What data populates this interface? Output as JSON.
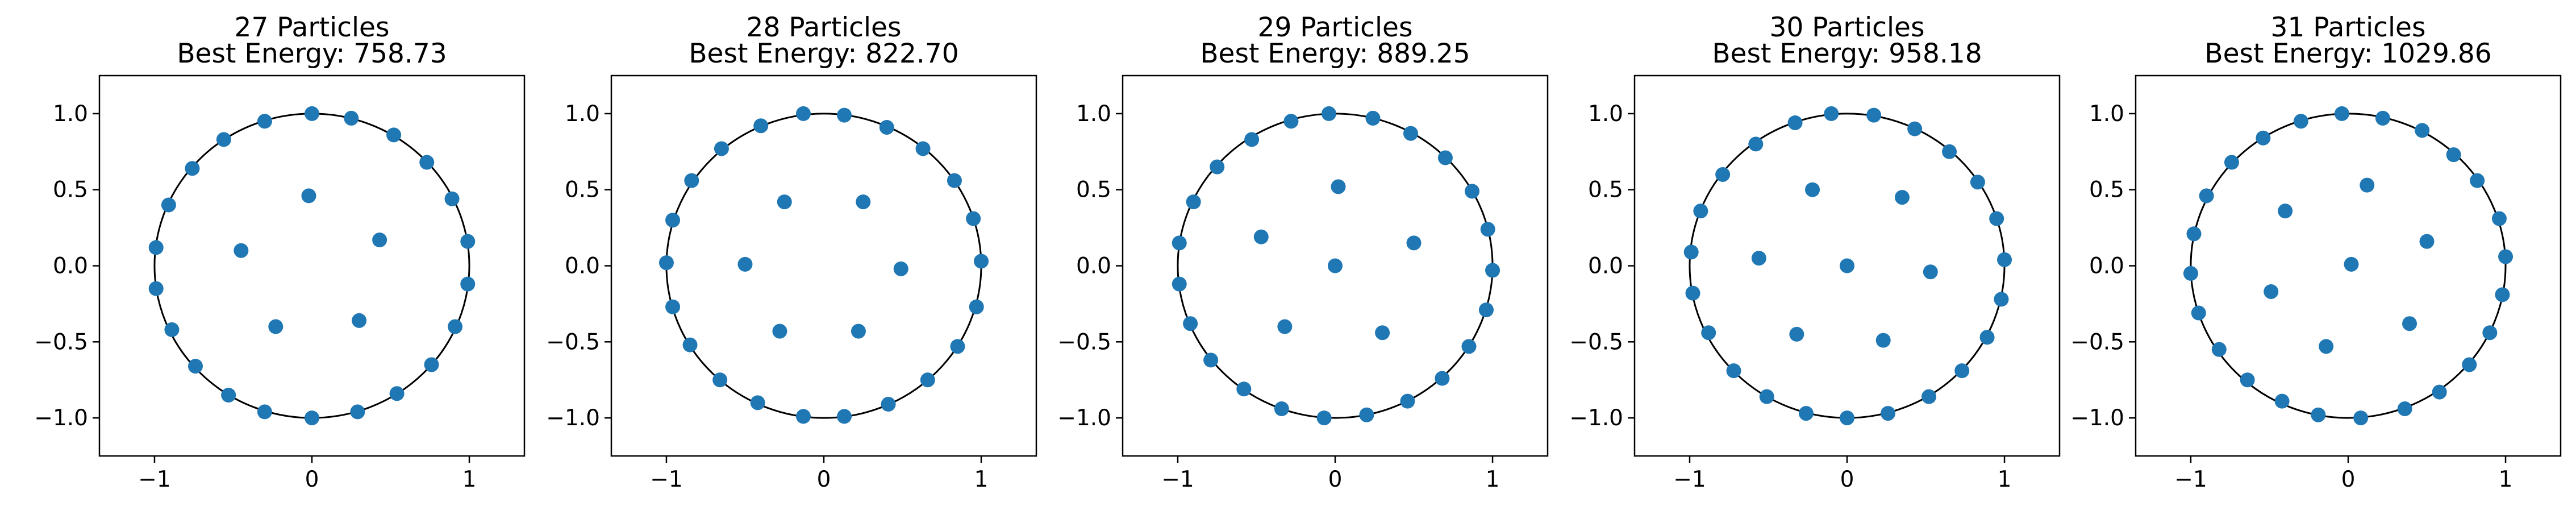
{
  "chart_data": [
    {
      "type": "scatter",
      "title": "27 Particles\nBest Energy: 758.73",
      "xlim": [
        -1.35,
        1.35
      ],
      "ylim": [
        -1.25,
        1.25
      ],
      "xticks": [
        -1,
        0,
        1
      ],
      "yticks": [
        -1.0,
        -0.5,
        0.0,
        0.5,
        1.0
      ],
      "circle": {
        "radius": 1.0
      },
      "color": "#1f77b4",
      "points": [
        [
          0.0,
          1.0
        ],
        [
          0.25,
          0.97
        ],
        [
          0.52,
          0.86
        ],
        [
          0.73,
          0.68
        ],
        [
          0.89,
          0.44
        ],
        [
          0.99,
          0.16
        ],
        [
          0.99,
          -0.12
        ],
        [
          0.91,
          -0.4
        ],
        [
          0.76,
          -0.65
        ],
        [
          0.54,
          -0.84
        ],
        [
          0.29,
          -0.96
        ],
        [
          0.0,
          -1.0
        ],
        [
          -0.3,
          -0.96
        ],
        [
          -0.53,
          -0.85
        ],
        [
          -0.74,
          -0.66
        ],
        [
          -0.89,
          -0.42
        ],
        [
          -0.99,
          -0.15
        ],
        [
          -0.99,
          0.12
        ],
        [
          -0.91,
          0.4
        ],
        [
          -0.76,
          0.64
        ],
        [
          -0.56,
          0.83
        ],
        [
          -0.3,
          0.95
        ],
        [
          -0.02,
          0.46
        ],
        [
          0.43,
          0.17
        ],
        [
          0.3,
          -0.36
        ],
        [
          -0.23,
          -0.4
        ],
        [
          -0.45,
          0.1
        ]
      ]
    },
    {
      "type": "scatter",
      "title": "28 Particles\nBest Energy: 822.70",
      "xlim": [
        -1.35,
        1.35
      ],
      "ylim": [
        -1.25,
        1.25
      ],
      "xticks": [
        -1,
        0,
        1
      ],
      "yticks": [
        -1.0,
        -0.5,
        0.0,
        0.5,
        1.0
      ],
      "circle": {
        "radius": 1.0
      },
      "color": "#1f77b4",
      "points": [
        [
          -0.13,
          1.0
        ],
        [
          0.13,
          0.99
        ],
        [
          0.4,
          0.91
        ],
        [
          0.63,
          0.77
        ],
        [
          0.83,
          0.56
        ],
        [
          0.95,
          0.31
        ],
        [
          1.0,
          0.03
        ],
        [
          0.97,
          -0.27
        ],
        [
          0.85,
          -0.53
        ],
        [
          0.66,
          -0.75
        ],
        [
          0.41,
          -0.91
        ],
        [
          0.13,
          -0.99
        ],
        [
          -0.13,
          -0.99
        ],
        [
          -0.42,
          -0.9
        ],
        [
          -0.66,
          -0.75
        ],
        [
          -0.85,
          -0.52
        ],
        [
          -0.96,
          -0.27
        ],
        [
          -1.0,
          0.02
        ],
        [
          -0.96,
          0.3
        ],
        [
          -0.84,
          0.56
        ],
        [
          -0.65,
          0.77
        ],
        [
          -0.4,
          0.92
        ],
        [
          -0.25,
          0.42
        ],
        [
          0.25,
          0.42
        ],
        [
          0.49,
          -0.02
        ],
        [
          0.22,
          -0.43
        ],
        [
          -0.28,
          -0.43
        ],
        [
          -0.5,
          0.01
        ]
      ]
    },
    {
      "type": "scatter",
      "title": "29 Particles\nBest Energy: 889.25",
      "xlim": [
        -1.35,
        1.35
      ],
      "ylim": [
        -1.25,
        1.25
      ],
      "xticks": [
        -1,
        0,
        1
      ],
      "yticks": [
        -1.0,
        -0.5,
        0.0,
        0.5,
        1.0
      ],
      "circle": {
        "radius": 1.0
      },
      "color": "#1f77b4",
      "points": [
        [
          -0.04,
          1.0
        ],
        [
          0.24,
          0.97
        ],
        [
          0.48,
          0.87
        ],
        [
          0.7,
          0.71
        ],
        [
          0.87,
          0.49
        ],
        [
          0.97,
          0.24
        ],
        [
          1.0,
          -0.03
        ],
        [
          0.96,
          -0.29
        ],
        [
          0.85,
          -0.53
        ],
        [
          0.68,
          -0.74
        ],
        [
          0.46,
          -0.89
        ],
        [
          0.2,
          -0.98
        ],
        [
          -0.07,
          -1.0
        ],
        [
          -0.34,
          -0.94
        ],
        [
          -0.58,
          -0.81
        ],
        [
          -0.79,
          -0.62
        ],
        [
          -0.92,
          -0.38
        ],
        [
          -0.99,
          -0.12
        ],
        [
          -0.99,
          0.15
        ],
        [
          -0.9,
          0.42
        ],
        [
          -0.75,
          0.65
        ],
        [
          -0.53,
          0.83
        ],
        [
          -0.28,
          0.95
        ],
        [
          0.02,
          0.52
        ],
        [
          0.5,
          0.15
        ],
        [
          0.3,
          -0.44
        ],
        [
          -0.32,
          -0.4
        ],
        [
          -0.47,
          0.19
        ],
        [
          0.0,
          0.0
        ]
      ]
    },
    {
      "type": "scatter",
      "title": "30 Particles\nBest Energy: 958.18",
      "xlim": [
        -1.35,
        1.35
      ],
      "ylim": [
        -1.25,
        1.25
      ],
      "xticks": [
        -1,
        0,
        1
      ],
      "yticks": [
        -1.0,
        -0.5,
        0.0,
        0.5,
        1.0
      ],
      "circle": {
        "radius": 1.0
      },
      "color": "#1f77b4",
      "points": [
        [
          -0.1,
          1.0
        ],
        [
          0.17,
          0.99
        ],
        [
          0.43,
          0.9
        ],
        [
          0.65,
          0.75
        ],
        [
          0.83,
          0.55
        ],
        [
          0.95,
          0.31
        ],
        [
          1.0,
          0.04
        ],
        [
          0.98,
          -0.22
        ],
        [
          0.89,
          -0.47
        ],
        [
          0.73,
          -0.69
        ],
        [
          0.52,
          -0.86
        ],
        [
          0.26,
          -0.97
        ],
        [
          0.0,
          -1.0
        ],
        [
          -0.26,
          -0.97
        ],
        [
          -0.51,
          -0.86
        ],
        [
          -0.72,
          -0.69
        ],
        [
          -0.88,
          -0.44
        ],
        [
          -0.98,
          -0.18
        ],
        [
          -0.99,
          0.09
        ],
        [
          -0.93,
          0.36
        ],
        [
          -0.79,
          0.6
        ],
        [
          -0.58,
          0.8
        ],
        [
          -0.33,
          0.94
        ],
        [
          -0.22,
          0.5
        ],
        [
          0.35,
          0.45
        ],
        [
          0.53,
          -0.04
        ],
        [
          0.23,
          -0.49
        ],
        [
          -0.32,
          -0.45
        ],
        [
          -0.56,
          0.05
        ],
        [
          0.0,
          0.0
        ]
      ]
    },
    {
      "type": "scatter",
      "title": "31 Particles\nBest Energy: 1029.86",
      "xlim": [
        -1.35,
        1.35
      ],
      "ylim": [
        -1.25,
        1.25
      ],
      "xticks": [
        -1,
        0,
        1
      ],
      "yticks": [
        -1.0,
        -0.5,
        0.0,
        0.5,
        1.0
      ],
      "circle": {
        "radius": 1.0
      },
      "color": "#1f77b4",
      "points": [
        [
          -0.04,
          1.0
        ],
        [
          0.22,
          0.97
        ],
        [
          0.47,
          0.89
        ],
        [
          0.67,
          0.73
        ],
        [
          0.82,
          0.56
        ],
        [
          0.96,
          0.31
        ],
        [
          1.0,
          0.06
        ],
        [
          0.98,
          -0.19
        ],
        [
          0.9,
          -0.44
        ],
        [
          0.77,
          -0.65
        ],
        [
          0.58,
          -0.83
        ],
        [
          0.36,
          -0.94
        ],
        [
          0.08,
          -1.0
        ],
        [
          -0.19,
          -0.98
        ],
        [
          -0.42,
          -0.89
        ],
        [
          -0.64,
          -0.75
        ],
        [
          -0.82,
          -0.55
        ],
        [
          -0.95,
          -0.31
        ],
        [
          -1.0,
          -0.05
        ],
        [
          -0.98,
          0.21
        ],
        [
          -0.9,
          0.46
        ],
        [
          -0.74,
          0.68
        ],
        [
          -0.54,
          0.84
        ],
        [
          -0.3,
          0.95
        ],
        [
          0.12,
          0.53
        ],
        [
          0.5,
          0.16
        ],
        [
          0.39,
          -0.38
        ],
        [
          -0.14,
          -0.53
        ],
        [
          -0.49,
          -0.17
        ],
        [
          -0.4,
          0.36
        ],
        [
          0.02,
          0.01
        ]
      ]
    }
  ]
}
